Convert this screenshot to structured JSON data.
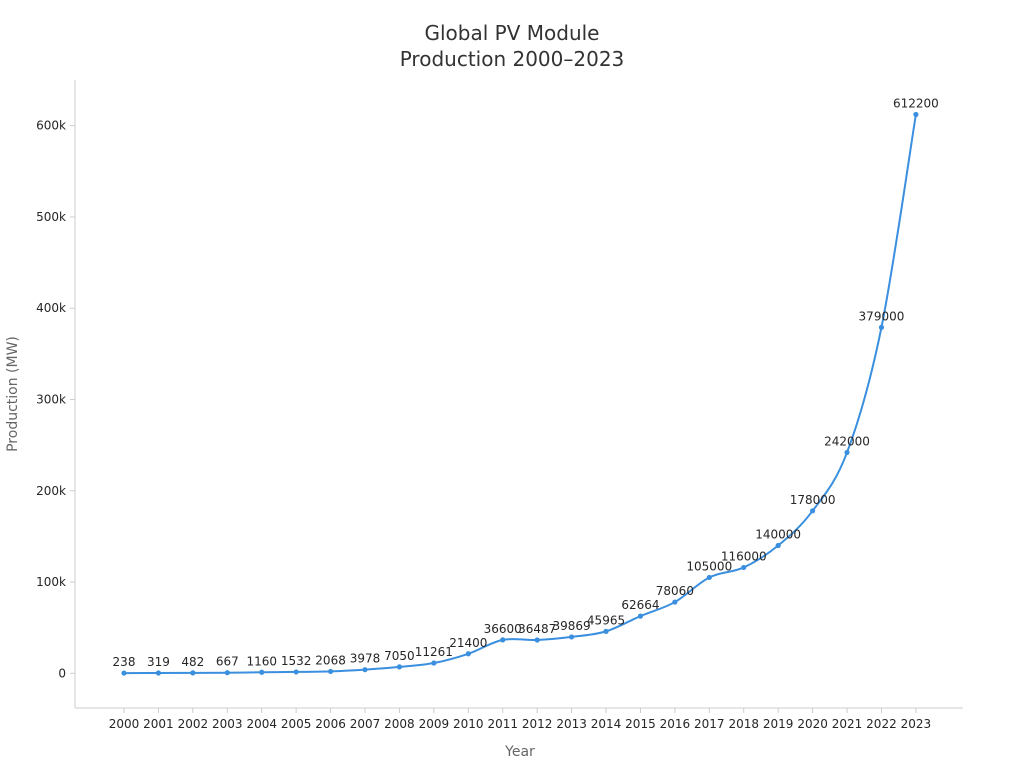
{
  "chart_data": {
    "type": "line",
    "title_lines": [
      "Global PV Module",
      "Production 2000–2023"
    ],
    "xlabel": "Year",
    "ylabel": "Production (MW)",
    "x": [
      "2000",
      "2001",
      "2002",
      "2003",
      "2004",
      "2005",
      "2006",
      "2007",
      "2008",
      "2009",
      "2010",
      "2011",
      "2012",
      "2013",
      "2014",
      "2015",
      "2016",
      "2017",
      "2018",
      "2019",
      "2020",
      "2021",
      "2022",
      "2023"
    ],
    "series": [
      {
        "values": [
          238,
          319,
          482,
          667,
          1160,
          1532,
          2068,
          3978,
          7050,
          11261,
          21400,
          36600,
          36487,
          39869,
          45965,
          62664,
          78060,
          105000,
          116000,
          140000,
          178000,
          242000,
          379000,
          612200
        ],
        "color": "#3a8fde"
      }
    ],
    "data_labels": [
      "238",
      "319",
      "482",
      "667",
      "1160",
      "1532",
      "2068",
      "3978",
      "7050",
      "11261",
      "21400",
      "36600",
      "36487",
      "39869",
      "45965",
      "62664",
      "78060",
      "105000",
      "116000",
      "140000",
      "178000",
      "242000",
      "379000",
      "612200"
    ],
    "y_ticks": [
      0,
      100000,
      200000,
      300000,
      400000,
      500000,
      600000
    ],
    "y_tick_labels": [
      "0",
      "100k",
      "200k",
      "300k",
      "400k",
      "500k",
      "600k"
    ],
    "ylim": [
      -38000,
      650000
    ],
    "grid": false,
    "legend": "none",
    "axis_color": "#cccccc"
  }
}
